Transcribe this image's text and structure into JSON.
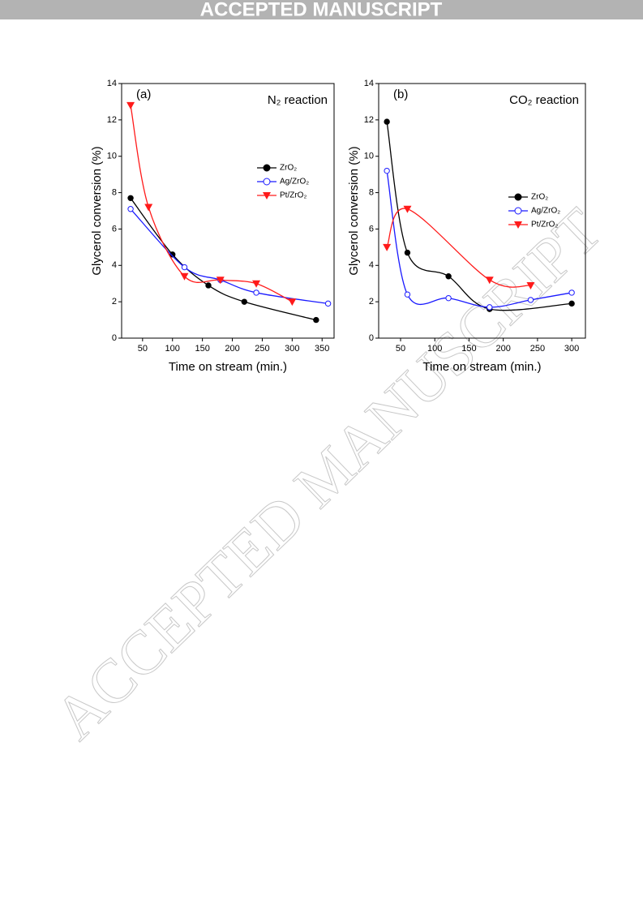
{
  "header": "ACCEPTED MANUSCRIPT",
  "watermark": "ACCEPTED MANUSCRIPT",
  "chart_data": [
    {
      "type": "line",
      "panel_label": "(a)",
      "title": "N₂ reaction",
      "xlabel": "Time on stream (min.)",
      "ylabel": "Glycerol conversion (%)",
      "xlim": [
        15,
        370
      ],
      "ylim": [
        0,
        14
      ],
      "xticks": [
        50,
        100,
        150,
        200,
        250,
        300,
        350
      ],
      "yticks": [
        0,
        2,
        4,
        6,
        8,
        10,
        12,
        14
      ],
      "legend": "center right",
      "series": [
        {
          "name": "ZrO₂",
          "color": "#000000",
          "marker": "filled-circle",
          "x": [
            30,
            100,
            160,
            220,
            340
          ],
          "values": [
            7.7,
            4.6,
            2.9,
            2.0,
            1.0
          ]
        },
        {
          "name": "Ag/ZrO₂",
          "color": "#1a1aff",
          "marker": "open-circle",
          "x": [
            30,
            120,
            180,
            240,
            360
          ],
          "values": [
            7.1,
            3.9,
            3.2,
            2.5,
            1.9
          ]
        },
        {
          "name": "Pt/ZrO₂",
          "color": "#ff1a1a",
          "marker": "down-triangle",
          "x": [
            30,
            60,
            120,
            180,
            240,
            300
          ],
          "values": [
            12.8,
            7.2,
            3.4,
            3.2,
            3.0,
            2.0
          ]
        }
      ]
    },
    {
      "type": "line",
      "panel_label": "(b)",
      "title": "CO₂ reaction",
      "xlabel": "Time on stream (min.)",
      "ylabel": "Glycerol conversion (%)",
      "xlim": [
        18,
        320
      ],
      "ylim": [
        0,
        14
      ],
      "xticks": [
        50,
        100,
        150,
        200,
        250,
        300
      ],
      "yticks": [
        0,
        2,
        4,
        6,
        8,
        10,
        12,
        14
      ],
      "legend": "upper right",
      "series": [
        {
          "name": "ZrO₂",
          "color": "#000000",
          "marker": "filled-circle",
          "x": [
            30,
            60,
            120,
            180,
            300
          ],
          "values": [
            11.9,
            4.7,
            3.4,
            1.6,
            1.9
          ]
        },
        {
          "name": "Ag/ZrO₂",
          "color": "#1a1aff",
          "marker": "open-circle",
          "x": [
            30,
            60,
            120,
            180,
            240,
            300
          ],
          "values": [
            9.2,
            2.4,
            2.2,
            1.7,
            2.1,
            2.5
          ]
        },
        {
          "name": "Pt/ZrO₂",
          "color": "#ff1a1a",
          "marker": "down-triangle",
          "x": [
            30,
            60,
            180,
            240
          ],
          "values": [
            5.0,
            7.1,
            3.2,
            2.9
          ]
        }
      ]
    }
  ]
}
